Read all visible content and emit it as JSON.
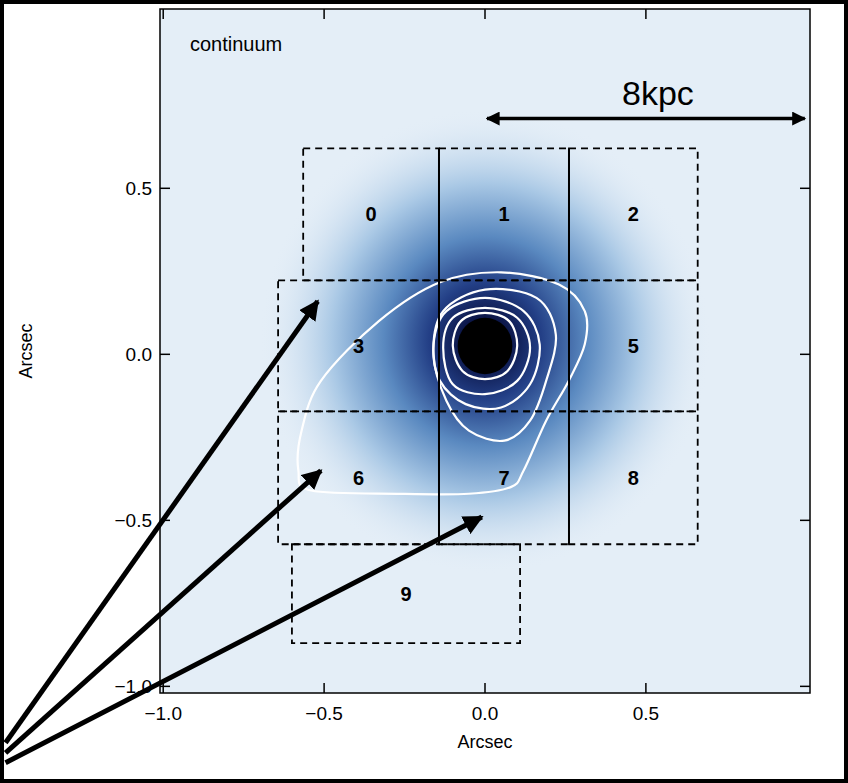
{
  "chart_data": {
    "type": "image",
    "title": "continuum",
    "x_label": "Arcsec",
    "y_label": "Arcsec",
    "xlim": [
      -1.01,
      1.01
    ],
    "ylim": [
      -1.02,
      1.04
    ],
    "xticks": [
      {
        "value": -1,
        "label": "−1.0"
      },
      {
        "value": -0.5,
        "label": "−0.5"
      },
      {
        "value": 0,
        "label": "0.0"
      },
      0.5
    ],
    "yticks": [
      {
        "value": -1,
        "label": "−1.0"
      },
      {
        "value": -0.5,
        "label": "−0.5"
      },
      {
        "value": 0,
        "label": "0.0"
      },
      0.5
    ],
    "source": {
      "x": 0,
      "y": 0.04,
      "radius": 0.7
    },
    "peak": {
      "x": 0,
      "y": 0.025,
      "radius": 0.085
    },
    "contours": [
      {
        "x": [
          -0.51,
          -0.33,
          -0.14,
          0.05,
          0.23,
          0.31,
          0.31,
          0.26,
          0.19,
          0.12,
          0.08,
          -0.05,
          -0.26,
          -0.54,
          -0.58,
          -0.57
        ],
        "y": [
          -0.08,
          0.1,
          0.217,
          0.247,
          0.21,
          0.13,
          0.03,
          -0.08,
          -0.2,
          -0.35,
          -0.4,
          -0.42,
          -0.42,
          -0.41,
          -0.35,
          -0.23
        ]
      },
      {
        "x": [
          -0.13,
          0,
          0.16,
          0.22,
          0.19,
          0.14,
          0.06,
          -0.05,
          -0.12,
          -0.16
        ],
        "y": [
          0.13,
          0.195,
          0.17,
          0.06,
          -0.08,
          -0.2,
          -0.26,
          -0.23,
          -0.14,
          0.0
        ]
      },
      {
        "x": [
          0,
          0.12,
          0.17,
          0.14,
          0.05,
          -0.06,
          -0.14,
          -0.16,
          -0.12
        ],
        "y": [
          0.17,
          0.13,
          0.03,
          -0.09,
          -0.16,
          -0.15,
          -0.08,
          0.03,
          0.13
        ]
      },
      {
        "x": [
          0,
          0.1,
          0.14,
          0.1,
          0,
          -0.1,
          -0.13,
          -0.1
        ],
        "y": [
          0.14,
          0.11,
          0.02,
          -0.08,
          -0.12,
          -0.09,
          0.02,
          0.11
        ]
      },
      {
        "x": [
          0,
          0.075,
          0.1,
          0.07,
          0,
          -0.07,
          -0.1,
          -0.075
        ],
        "y": [
          0.125,
          0.1,
          0.025,
          -0.05,
          -0.075,
          -0.05,
          0.025,
          0.1
        ]
      }
    ],
    "regions": [
      {
        "label": "0",
        "x": [
          -0.565,
          -0.143
        ],
        "y": [
          0.223,
          0.62
        ]
      },
      {
        "label": "1",
        "x": [
          -0.143,
          0.261
        ],
        "y": [
          0.223,
          0.62
        ]
      },
      {
        "label": "2",
        "x": [
          0.261,
          0.661
        ],
        "y": [
          0.223,
          0.62
        ]
      },
      {
        "label": "3",
        "x": [
          -0.643,
          -0.143
        ],
        "y": [
          -0.172,
          0.223
        ]
      },
      {
        "label": null,
        "x": [
          -0.143,
          0.261
        ],
        "y": [
          -0.172,
          0.223
        ]
      },
      {
        "label": "5",
        "x": [
          0.261,
          0.661
        ],
        "y": [
          -0.172,
          0.223
        ]
      },
      {
        "label": "6",
        "x": [
          -0.643,
          -0.143
        ],
        "y": [
          -0.572,
          -0.172
        ]
      },
      {
        "label": "7",
        "x": [
          -0.143,
          0.261
        ],
        "y": [
          -0.572,
          -0.172
        ]
      },
      {
        "label": "8",
        "x": [
          0.261,
          0.661
        ],
        "y": [
          -0.572,
          -0.172
        ]
      },
      {
        "label": "9",
        "x": [
          -0.6,
          0.109
        ],
        "y": [
          -0.87,
          -0.572
        ]
      }
    ],
    "dividers": {
      "x": [
        -0.143,
        0.261
      ],
      "y": [
        -0.572,
        0.62
      ]
    },
    "scale_bar": {
      "x": [
        0,
        1.0
      ],
      "y": 0.71,
      "label": "8kpc"
    },
    "arrows": [
      {
        "x": [
          -1.49,
          -0.52
        ],
        "y": [
          -1.17,
          0.16
        ]
      },
      {
        "x": [
          -1.49,
          -0.51
        ],
        "y": [
          -1.2,
          -0.35
        ]
      },
      {
        "x": [
          -1.49,
          -0.01
        ],
        "y": [
          -1.23,
          -0.49
        ]
      }
    ]
  }
}
